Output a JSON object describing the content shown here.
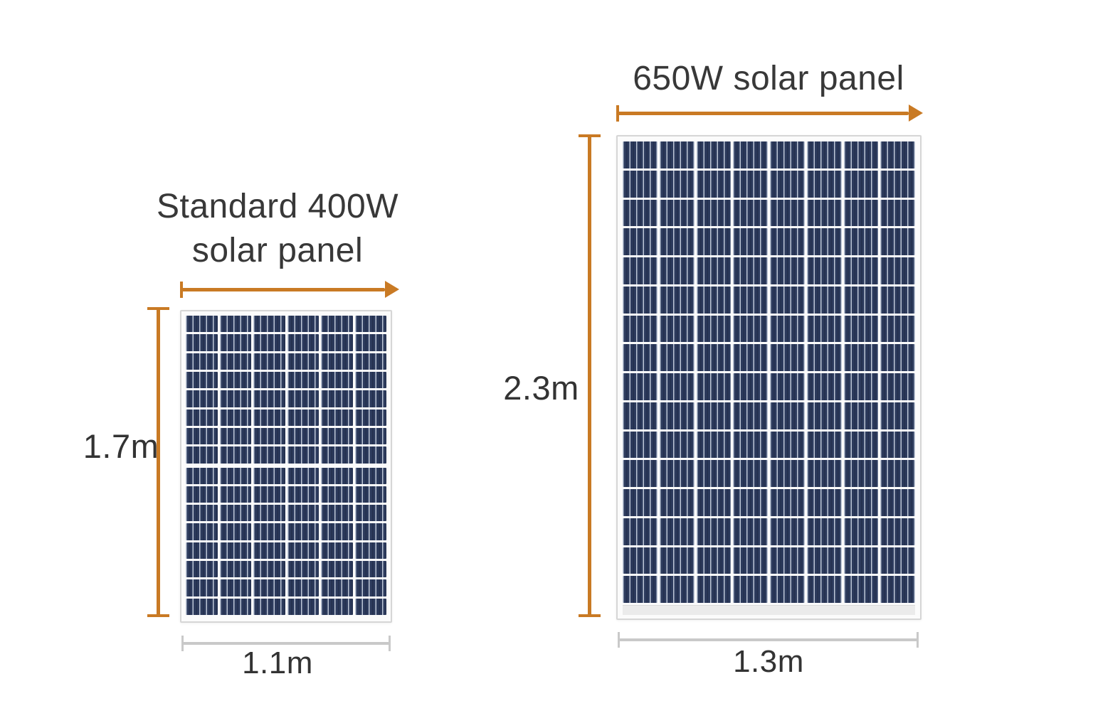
{
  "diagram": {
    "type": "solar-panel-size-comparison",
    "background": "#ffffff",
    "colors": {
      "arrow_orange": "#c97a24",
      "measure_gray": "#c9c9c9",
      "text": "#383838",
      "cell_navy": "#2c3a5c",
      "cell_busbar": "#d6deec",
      "frame_white": "#fbfbfb",
      "frame_border": "#d6d6d6"
    },
    "panels": [
      {
        "name": "Standard 400W solar panel",
        "power_label": "Standard 400W",
        "title_lines": [
          "Standard 400W",
          "solar panel"
        ],
        "height_label": "1.7m",
        "width_label": "1.1m",
        "grid_top": {
          "cols": 6,
          "rows": 8
        },
        "grid_bottom": {
          "cols": 6,
          "rows": 8
        }
      },
      {
        "name": "650W solar panel",
        "title_lines": [
          "650W solar panel"
        ],
        "height_label": "2.3m",
        "width_label": "1.3m",
        "grid": {
          "cols": 8,
          "rows": 16
        }
      }
    ]
  }
}
